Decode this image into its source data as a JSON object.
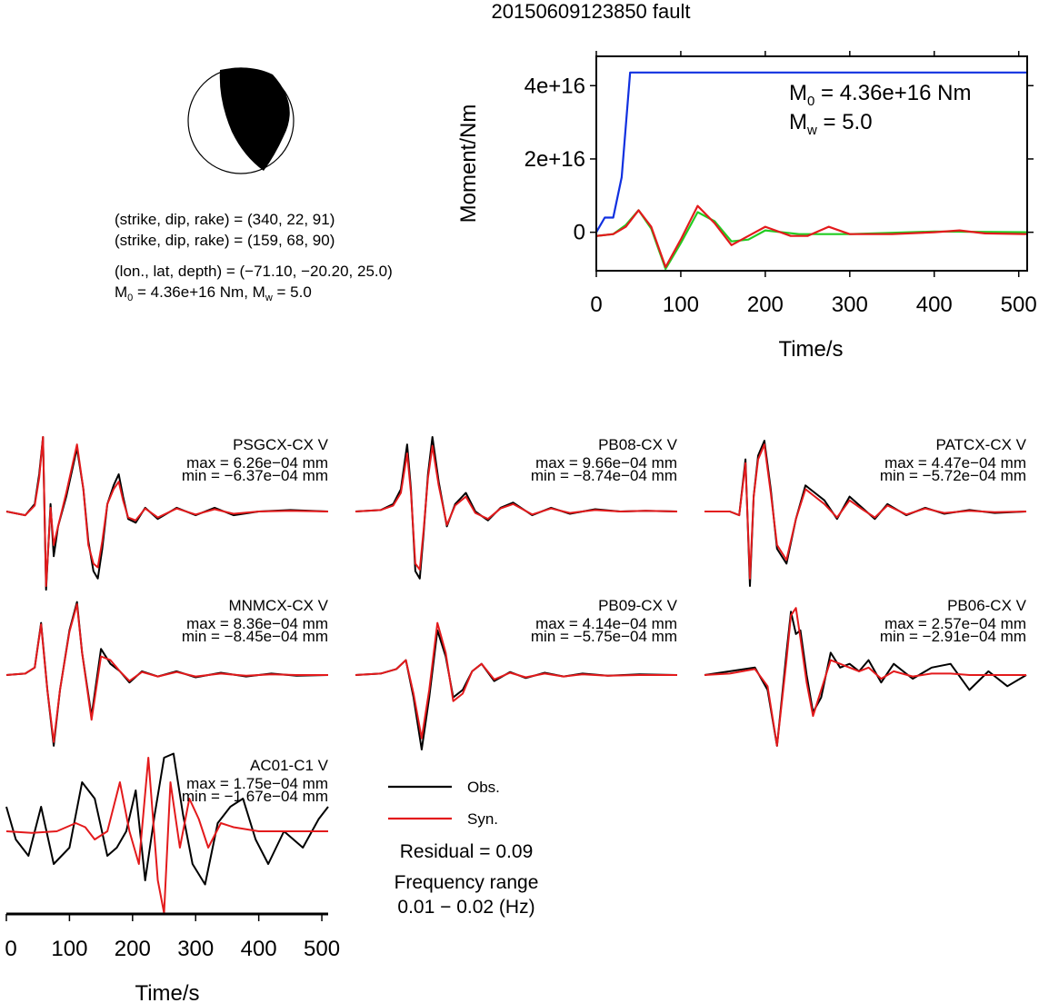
{
  "title": "20150609123850 fault",
  "mechanism": {
    "plane1": "(strike, dip, rake) = (340, 22, 91)",
    "plane2": "(strike, dip, rake) = (159, 68, 90)",
    "location": "(lon., lat, depth) = (−71.10, −20.20, 25.0)",
    "moment_line_m0": "4.36e+16 Nm",
    "moment_line_mw": "5.0",
    "m0_symbol": "M",
    "m0_sub": "0",
    "mw_symbol": "M",
    "mw_sub": "w",
    "equals": " = ",
    "separator": ", "
  },
  "colors": {
    "observed": "#000000",
    "synthetic": "#e31a1c",
    "moment": "#1030e0",
    "stf_green": "#22cc22"
  },
  "chart_data": [
    {
      "type": "line",
      "name": "moment-rate-panel",
      "xlabel": "Time/s",
      "ylabel": "Moment/Nm",
      "xlim": [
        0,
        510
      ],
      "ylim": [
        -1.05e+16,
        4.8e+16
      ],
      "x_ticks": [
        0,
        100,
        200,
        300,
        400,
        500
      ],
      "y_ticks": [
        0,
        2e+16,
        4e+16
      ],
      "y_tick_labels": [
        "0",
        "2e+16",
        "4e+16"
      ],
      "annotation_m0": "4.36e+16 Nm",
      "annotation_mw": "5.0",
      "series": [
        {
          "color": "blue",
          "x": [
            0,
            10,
            20,
            30,
            40,
            510
          ],
          "y": [
            0,
            4000000000000000.0,
            4000000000000000.0,
            1.5e+16,
            4.36e+16,
            4.36e+16
          ]
        },
        {
          "color": "green",
          "x": [
            0,
            20,
            35,
            50,
            65,
            82,
            100,
            120,
            140,
            160,
            180,
            200,
            240,
            300,
            400,
            510
          ],
          "y": [
            -1000000000000000.0,
            -500000000000000.0,
            2000000000000000.0,
            6000000000000000.0,
            1000000000000000.0,
            -1e+16,
            -3000000000000000.0,
            5500000000000000.0,
            3000000000000000.0,
            -2500000000000000.0,
            -2000000000000000.0,
            500000000000000.0,
            -500000000000000.0,
            -500000000000000.0,
            200000000000000.0,
            0.0
          ]
        },
        {
          "color": "red",
          "x": [
            0,
            20,
            35,
            50,
            65,
            82,
            100,
            120,
            140,
            160,
            180,
            200,
            230,
            250,
            275,
            300,
            350,
            400,
            430,
            460,
            510
          ],
          "y": [
            -1000000000000000.0,
            -500000000000000.0,
            1500000000000000.0,
            6000000000000000.0,
            1500000000000000.0,
            -9500000000000000.0,
            -2000000000000000.0,
            7200000000000000.0,
            2500000000000000.0,
            -3500000000000000.0,
            -1000000000000000.0,
            1500000000000000.0,
            -1000000000000000.0,
            -1000000000000000.0,
            1500000000000000.0,
            -500000000000000.0,
            -500000000000000.0,
            0.0,
            500000000000000.0,
            -300000000000000.0,
            -500000000000000.0
          ]
        }
      ]
    },
    {
      "type": "line",
      "name": "waveforms",
      "xlabel": "Time/s",
      "xlim": [
        0,
        510
      ],
      "x_ticks": [
        0,
        100,
        200,
        300,
        400,
        500
      ],
      "legend": [
        "Obs.",
        "Syn."
      ],
      "residual": "Residual = 0.09",
      "freq_label": "Frequency range",
      "freq_value": "0.01 − 0.02 (Hz)",
      "stations": [
        {
          "name": "PSGCX-CX V",
          "max": "max = 6.26e−04 mm",
          "min": "min = −6.37e−04 mm",
          "obs_x": [
            0,
            30,
            45,
            52,
            58,
            63,
            70,
            75,
            82,
            95,
            112,
            122,
            130,
            138,
            145,
            152,
            160,
            170,
            178,
            185,
            193,
            205,
            220,
            240,
            270,
            300,
            330,
            360,
            400,
            450,
            510
          ],
          "obs_y": [
            0,
            -0.05,
            0.1,
            0.5,
            1.0,
            -1.05,
            0.1,
            -0.6,
            -0.2,
            0.2,
            0.85,
            0.3,
            -0.4,
            -0.8,
            -0.9,
            -0.5,
            0.1,
            0.35,
            0.5,
            0.2,
            -0.1,
            -0.15,
            0.05,
            -0.1,
            0.05,
            -0.05,
            0.05,
            -0.05,
            0.0,
            0.02,
            0.0
          ],
          "syn_x": [
            0,
            30,
            45,
            52,
            58,
            63,
            70,
            75,
            82,
            95,
            112,
            122,
            130,
            138,
            145,
            152,
            160,
            170,
            178,
            185,
            193,
            205,
            220,
            240,
            270,
            300,
            330,
            360,
            400,
            450,
            510
          ],
          "syn_y": [
            0,
            -0.05,
            0.08,
            0.45,
            1.0,
            -1.0,
            0.05,
            -0.45,
            -0.2,
            0.25,
            0.9,
            0.3,
            -0.45,
            -0.7,
            -0.75,
            -0.4,
            0.1,
            0.3,
            0.4,
            0.15,
            -0.08,
            -0.12,
            0.04,
            -0.08,
            0.04,
            -0.04,
            0.03,
            -0.03,
            0.0,
            0.01,
            0.0
          ]
        },
        {
          "name": "PB08-CX V",
          "max": "max = 9.66e−04 mm",
          "min": "min = −8.74e−04 mm",
          "obs_x": [
            0,
            40,
            60,
            72,
            82,
            88,
            95,
            102,
            108,
            115,
            122,
            132,
            145,
            158,
            175,
            190,
            210,
            230,
            250,
            280,
            310,
            340,
            380,
            420,
            460,
            510
          ],
          "obs_y": [
            0,
            0.02,
            0.1,
            0.3,
            0.9,
            0.3,
            -0.8,
            -0.9,
            -0.3,
            0.5,
            1.0,
            0.4,
            -0.2,
            0.1,
            0.25,
            0.0,
            -0.12,
            0.05,
            0.12,
            -0.05,
            0.05,
            -0.03,
            0.03,
            0.0,
            0.01,
            0.0
          ],
          "syn_x": [
            0,
            40,
            60,
            72,
            82,
            88,
            95,
            102,
            108,
            115,
            122,
            132,
            145,
            158,
            175,
            190,
            210,
            230,
            250,
            280,
            310,
            340,
            380,
            420,
            460,
            510
          ],
          "syn_y": [
            0,
            0.02,
            0.08,
            0.25,
            0.78,
            0.25,
            -0.7,
            -0.78,
            -0.25,
            0.45,
            0.88,
            0.35,
            -0.18,
            0.08,
            0.2,
            -0.02,
            -0.1,
            0.04,
            0.1,
            -0.04,
            0.04,
            -0.02,
            0.02,
            0.0,
            0.01,
            0.0
          ]
        },
        {
          "name": "PATCX-CX V",
          "max": "max = 4.47e−04 mm",
          "min": "min = −5.72e−04 mm",
          "obs_x": [
            0,
            40,
            55,
            65,
            72,
            78,
            85,
            95,
            105,
            115,
            130,
            145,
            160,
            175,
            190,
            210,
            230,
            250,
            270,
            290,
            320,
            350,
            380,
            420,
            460,
            510
          ],
          "obs_y": [
            0,
            0.0,
            -0.05,
            0.7,
            -1.0,
            0.2,
            0.75,
            0.95,
            0.3,
            -0.5,
            -0.7,
            -0.1,
            0.35,
            0.25,
            0.15,
            -0.1,
            0.2,
            0.05,
            -0.1,
            0.1,
            -0.05,
            0.05,
            -0.03,
            0.02,
            -0.02,
            0.0
          ],
          "syn_x": [
            0,
            40,
            55,
            65,
            72,
            78,
            85,
            95,
            105,
            115,
            130,
            145,
            160,
            175,
            190,
            210,
            230,
            250,
            270,
            290,
            320,
            350,
            380,
            420,
            460,
            510
          ],
          "syn_y": [
            0,
            0.0,
            -0.05,
            0.65,
            -0.9,
            0.2,
            0.7,
            0.9,
            0.25,
            -0.45,
            -0.65,
            -0.1,
            0.3,
            0.2,
            0.1,
            -0.08,
            0.15,
            0.03,
            -0.08,
            0.08,
            -0.04,
            0.04,
            -0.02,
            0.01,
            -0.01,
            0.0
          ]
        },
        {
          "name": "MNMCX-CX V",
          "max": "max = 8.36e−04 mm",
          "min": "min = −8.45e−04 mm",
          "obs_x": [
            0,
            30,
            45,
            55,
            65,
            75,
            85,
            100,
            112,
            120,
            135,
            150,
            165,
            180,
            195,
            215,
            240,
            270,
            300,
            340,
            380,
            420,
            460,
            510
          ],
          "obs_y": [
            0,
            0.02,
            0.1,
            0.7,
            -0.2,
            -0.95,
            -0.2,
            0.6,
            0.98,
            0.3,
            -0.55,
            0.35,
            0.15,
            0.05,
            -0.1,
            0.05,
            -0.02,
            0.05,
            -0.03,
            0.03,
            -0.02,
            0.02,
            -0.01,
            0.0
          ],
          "syn_x": [
            0,
            30,
            45,
            55,
            65,
            75,
            85,
            100,
            112,
            120,
            135,
            150,
            165,
            180,
            195,
            215,
            240,
            270,
            300,
            340,
            380,
            420,
            460,
            510
          ],
          "syn_y": [
            0,
            0.02,
            0.1,
            0.68,
            -0.2,
            -0.9,
            -0.2,
            0.58,
            0.95,
            0.3,
            -0.6,
            0.25,
            0.2,
            0.05,
            -0.08,
            0.04,
            -0.02,
            0.04,
            -0.02,
            0.02,
            -0.01,
            0.01,
            0.0,
            0.0
          ]
        },
        {
          "name": "PB09-CX V",
          "max": "max = 4.14e−04 mm",
          "min": "min = −5.75e−04 mm",
          "obs_x": [
            0,
            40,
            65,
            80,
            92,
            105,
            117,
            130,
            143,
            155,
            170,
            185,
            200,
            220,
            245,
            270,
            300,
            330,
            360,
            400,
            450,
            510
          ],
          "obs_y": [
            0,
            0.02,
            0.08,
            0.2,
            -0.3,
            -1.0,
            -0.3,
            0.6,
            0.25,
            -0.3,
            -0.2,
            0.05,
            0.15,
            -0.08,
            0.04,
            -0.04,
            0.03,
            -0.02,
            0.02,
            -0.01,
            0.01,
            0.0
          ],
          "syn_x": [
            0,
            40,
            65,
            80,
            92,
            105,
            117,
            130,
            143,
            155,
            170,
            185,
            200,
            220,
            245,
            270,
            300,
            330,
            360,
            400,
            450,
            510
          ],
          "syn_y": [
            0,
            0.02,
            0.08,
            0.2,
            -0.25,
            -0.85,
            -0.2,
            0.7,
            0.3,
            -0.35,
            -0.25,
            0.05,
            0.15,
            -0.06,
            0.03,
            -0.03,
            0.02,
            -0.02,
            0.01,
            -0.01,
            0.0,
            0.0
          ]
        },
        {
          "name": "PB06-CX V",
          "max": "max = 2.57e−04 mm",
          "min": "min = −2.91e−04 mm",
          "obs_x": [
            0,
            40,
            80,
            100,
            115,
            130,
            137,
            145,
            152,
            162,
            172,
            185,
            200,
            215,
            230,
            245,
            260,
            280,
            300,
            330,
            360,
            390,
            420,
            450,
            480,
            510
          ],
          "obs_y": [
            0,
            0.05,
            0.1,
            -0.2,
            -0.95,
            0.3,
            0.85,
            0.55,
            0.6,
            0.0,
            -0.5,
            -0.3,
            0.3,
            0.1,
            0.15,
            0.05,
            0.2,
            -0.1,
            0.15,
            -0.05,
            0.1,
            0.15,
            -0.2,
            0.05,
            -0.15,
            0.0
          ],
          "syn_x": [
            0,
            40,
            80,
            100,
            115,
            130,
            137,
            145,
            152,
            162,
            172,
            185,
            200,
            215,
            230,
            245,
            260,
            280,
            300,
            330,
            360,
            390,
            420,
            450,
            480,
            510
          ],
          "syn_y": [
            0,
            0.02,
            0.08,
            -0.15,
            -0.95,
            0.2,
            0.8,
            0.9,
            0.5,
            -0.1,
            -0.55,
            -0.2,
            0.2,
            0.15,
            0.1,
            0.05,
            0.1,
            -0.05,
            0.05,
            -0.02,
            0.02,
            0.02,
            0.0,
            0.0,
            0.0,
            0.0
          ]
        },
        {
          "name": "AC01-C1 V",
          "max": "max = 1.75e−04 mm",
          "min": "min = −1.67e−04 mm",
          "obs_x": [
            0,
            15,
            35,
            55,
            75,
            100,
            120,
            140,
            160,
            175,
            190,
            205,
            220,
            235,
            250,
            265,
            280,
            295,
            315,
            335,
            355,
            375,
            395,
            415,
            440,
            470,
            495,
            510
          ],
          "obs_y": [
            0.3,
            -0.1,
            -0.3,
            0.3,
            -0.4,
            -0.2,
            0.6,
            0.4,
            -0.3,
            -0.2,
            0.0,
            0.5,
            -0.6,
            0.2,
            0.9,
            0.95,
            0.2,
            -0.4,
            -0.65,
            0.1,
            0.3,
            0.4,
            -0.1,
            -0.4,
            0.0,
            -0.2,
            0.15,
            0.3
          ],
          "syn_x": [
            0,
            40,
            80,
            110,
            125,
            140,
            160,
            180,
            195,
            210,
            225,
            240,
            250,
            260,
            275,
            290,
            305,
            320,
            340,
            360,
            400,
            450,
            510
          ],
          "syn_y": [
            0,
            -0.02,
            0.0,
            0.1,
            0.05,
            -0.1,
            0.0,
            0.6,
            0.0,
            -0.4,
            0.9,
            -0.6,
            -1.0,
            0.6,
            -0.2,
            0.4,
            0.15,
            -0.2,
            0.1,
            0.05,
            0.0,
            0.0,
            0.0
          ]
        }
      ]
    }
  ]
}
